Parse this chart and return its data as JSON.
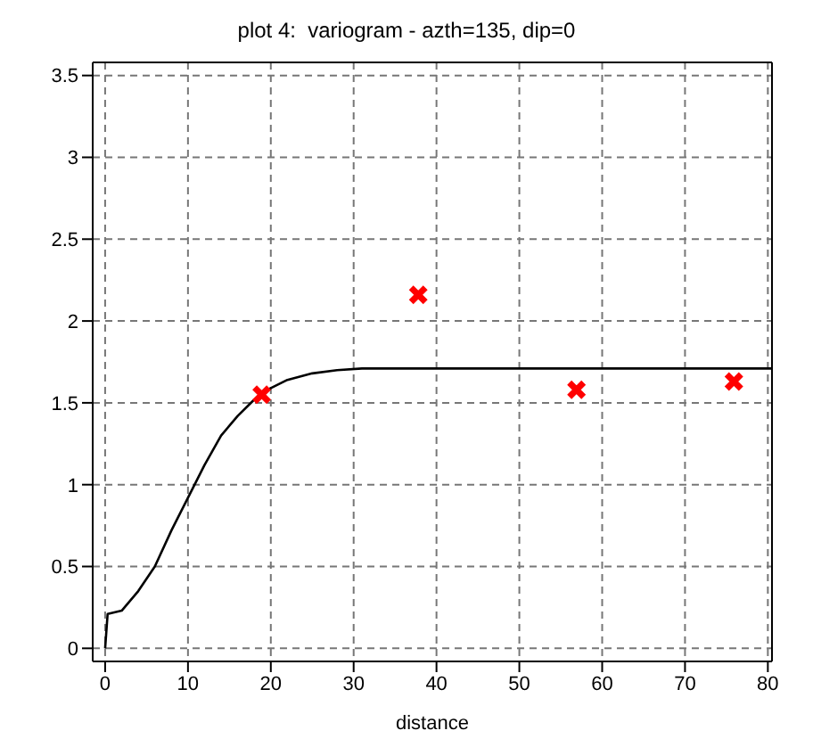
{
  "chart_data": {
    "type": "scatter",
    "title": "plot 4:  variogram - azth=135, dip=0",
    "xlabel": "distance",
    "xlim": [
      -1.5,
      80.5
    ],
    "xticks": [
      0,
      10,
      20,
      30,
      40,
      50,
      60,
      70,
      80
    ],
    "ylim": [
      -0.08,
      3.58
    ],
    "yticks": [
      0,
      0.5,
      1,
      1.5,
      2,
      2.5,
      3,
      3.5
    ],
    "grid": true,
    "marker": "cross",
    "series": [
      {
        "type": "line",
        "color": "#000000",
        "marker": "none",
        "x": [
          0,
          0.3,
          2,
          4,
          6,
          8,
          10,
          12,
          14,
          16,
          18,
          20,
          22,
          25,
          28,
          31,
          80.5
        ],
        "values": [
          0,
          0.21,
          0.23,
          0.35,
          0.5,
          0.72,
          0.92,
          1.12,
          1.3,
          1.42,
          1.52,
          1.59,
          1.64,
          1.68,
          1.7,
          1.71,
          1.71
        ]
      },
      {
        "color": "#ff0000",
        "x": [
          18.9,
          37.8,
          56.9,
          75.9
        ],
        "values": [
          1.55,
          2.16,
          1.58,
          1.63
        ]
      }
    ]
  }
}
